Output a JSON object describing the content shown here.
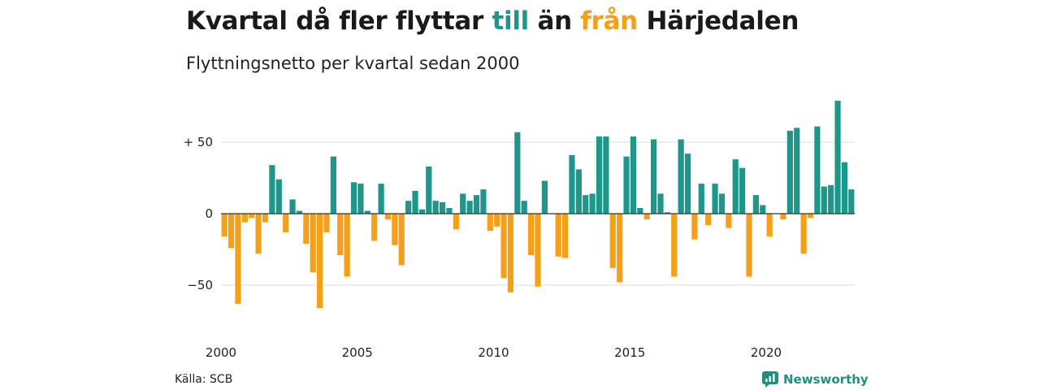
{
  "title": {
    "part1": "Kvartal då fler flyttar",
    "word_in": "till",
    "part2": "än",
    "word_out": "från",
    "part3": "Härjedalen"
  },
  "subtitle": "Flyttningsnetto per kvartal sedan 2000",
  "source": "Källa: SCB",
  "brand": "Newsworthy",
  "colors": {
    "positive": "#1f968a",
    "negative": "#f5a01a",
    "grid": "#dddddd",
    "zero_line": "#333333"
  },
  "chart_data": {
    "type": "bar",
    "ylim": [
      -75,
      85
    ],
    "yticks": [
      {
        "value": 50,
        "label": "+ 50"
      },
      {
        "value": 0,
        "label": "0"
      },
      {
        "value": -50,
        "label": "−50"
      }
    ],
    "xticks": [
      "2000",
      "2005",
      "2010",
      "2015",
      "2020"
    ],
    "grid": true,
    "start": "2000 Q1",
    "values": [
      -16,
      -24,
      -63,
      -6,
      -3,
      -28,
      -6,
      34,
      24,
      -13,
      10,
      2,
      -21,
      -41,
      -66,
      -13,
      40,
      -29,
      -44,
      22,
      21,
      2,
      -19,
      21,
      -4,
      -22,
      -36,
      9,
      16,
      3,
      33,
      9,
      8,
      4,
      -11,
      14,
      9,
      13,
      17,
      -12,
      -9,
      -45,
      -55,
      57,
      9,
      -29,
      -51,
      23,
      0,
      -30,
      -31,
      41,
      31,
      13,
      14,
      54,
      54,
      -38,
      -48,
      40,
      54,
      4,
      -4,
      52,
      14,
      1,
      -44,
      52,
      42,
      -18,
      21,
      -8,
      21,
      14,
      -10,
      38,
      32,
      -44,
      13,
      6,
      -16,
      0,
      -4,
      58,
      60,
      -28,
      -3,
      61,
      19,
      20,
      79,
      36,
      17
    ]
  }
}
